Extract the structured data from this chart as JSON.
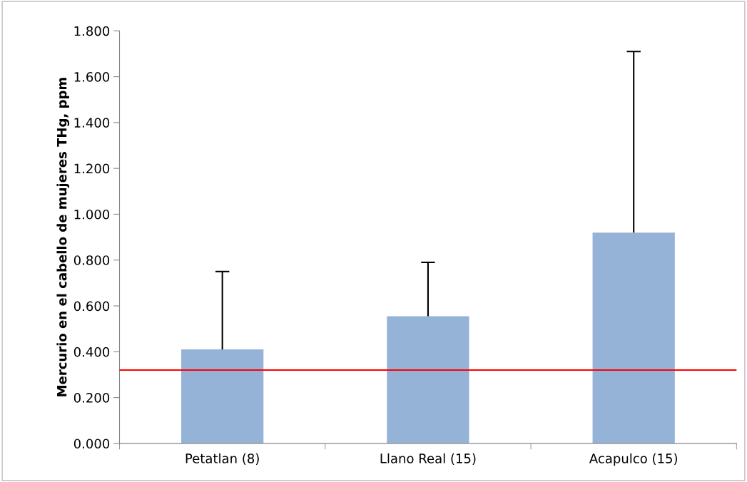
{
  "chart_data": {
    "type": "bar",
    "ylabel": "Mercurio en el cabello de mujeres THg, ppm",
    "categories": [
      "Petatlan (8)",
      "Llano Real (15)",
      "Acapulco (15)"
    ],
    "values": [
      0.41,
      0.555,
      0.92
    ],
    "color": "#95b3d7",
    "errors": [
      [
        0.41,
        0.75
      ],
      [
        0.555,
        0.79
      ],
      [
        0.92,
        1.71
      ]
    ],
    "ylim": [
      0,
      1.8
    ],
    "yticks": [
      {
        "value": 0,
        "label": "0.000"
      },
      {
        "value": 0.2,
        "label": "0.200"
      },
      {
        "value": 0.4,
        "label": "0.400"
      },
      {
        "value": 0.6,
        "label": "0.600"
      },
      {
        "value": 0.8,
        "label": "0.800"
      },
      {
        "value": 1.0,
        "label": "1.000"
      },
      {
        "value": 1.2,
        "label": "1.200"
      },
      {
        "value": 1.4,
        "label": "1.400"
      },
      {
        "value": 1.6,
        "label": "1.600"
      },
      {
        "value": 1.8,
        "label": "1.800"
      }
    ],
    "ref_lines": [
      {
        "axis": "y",
        "value": 0.32,
        "color": "#ff0000"
      }
    ],
    "grid": false,
    "legend": false
  }
}
